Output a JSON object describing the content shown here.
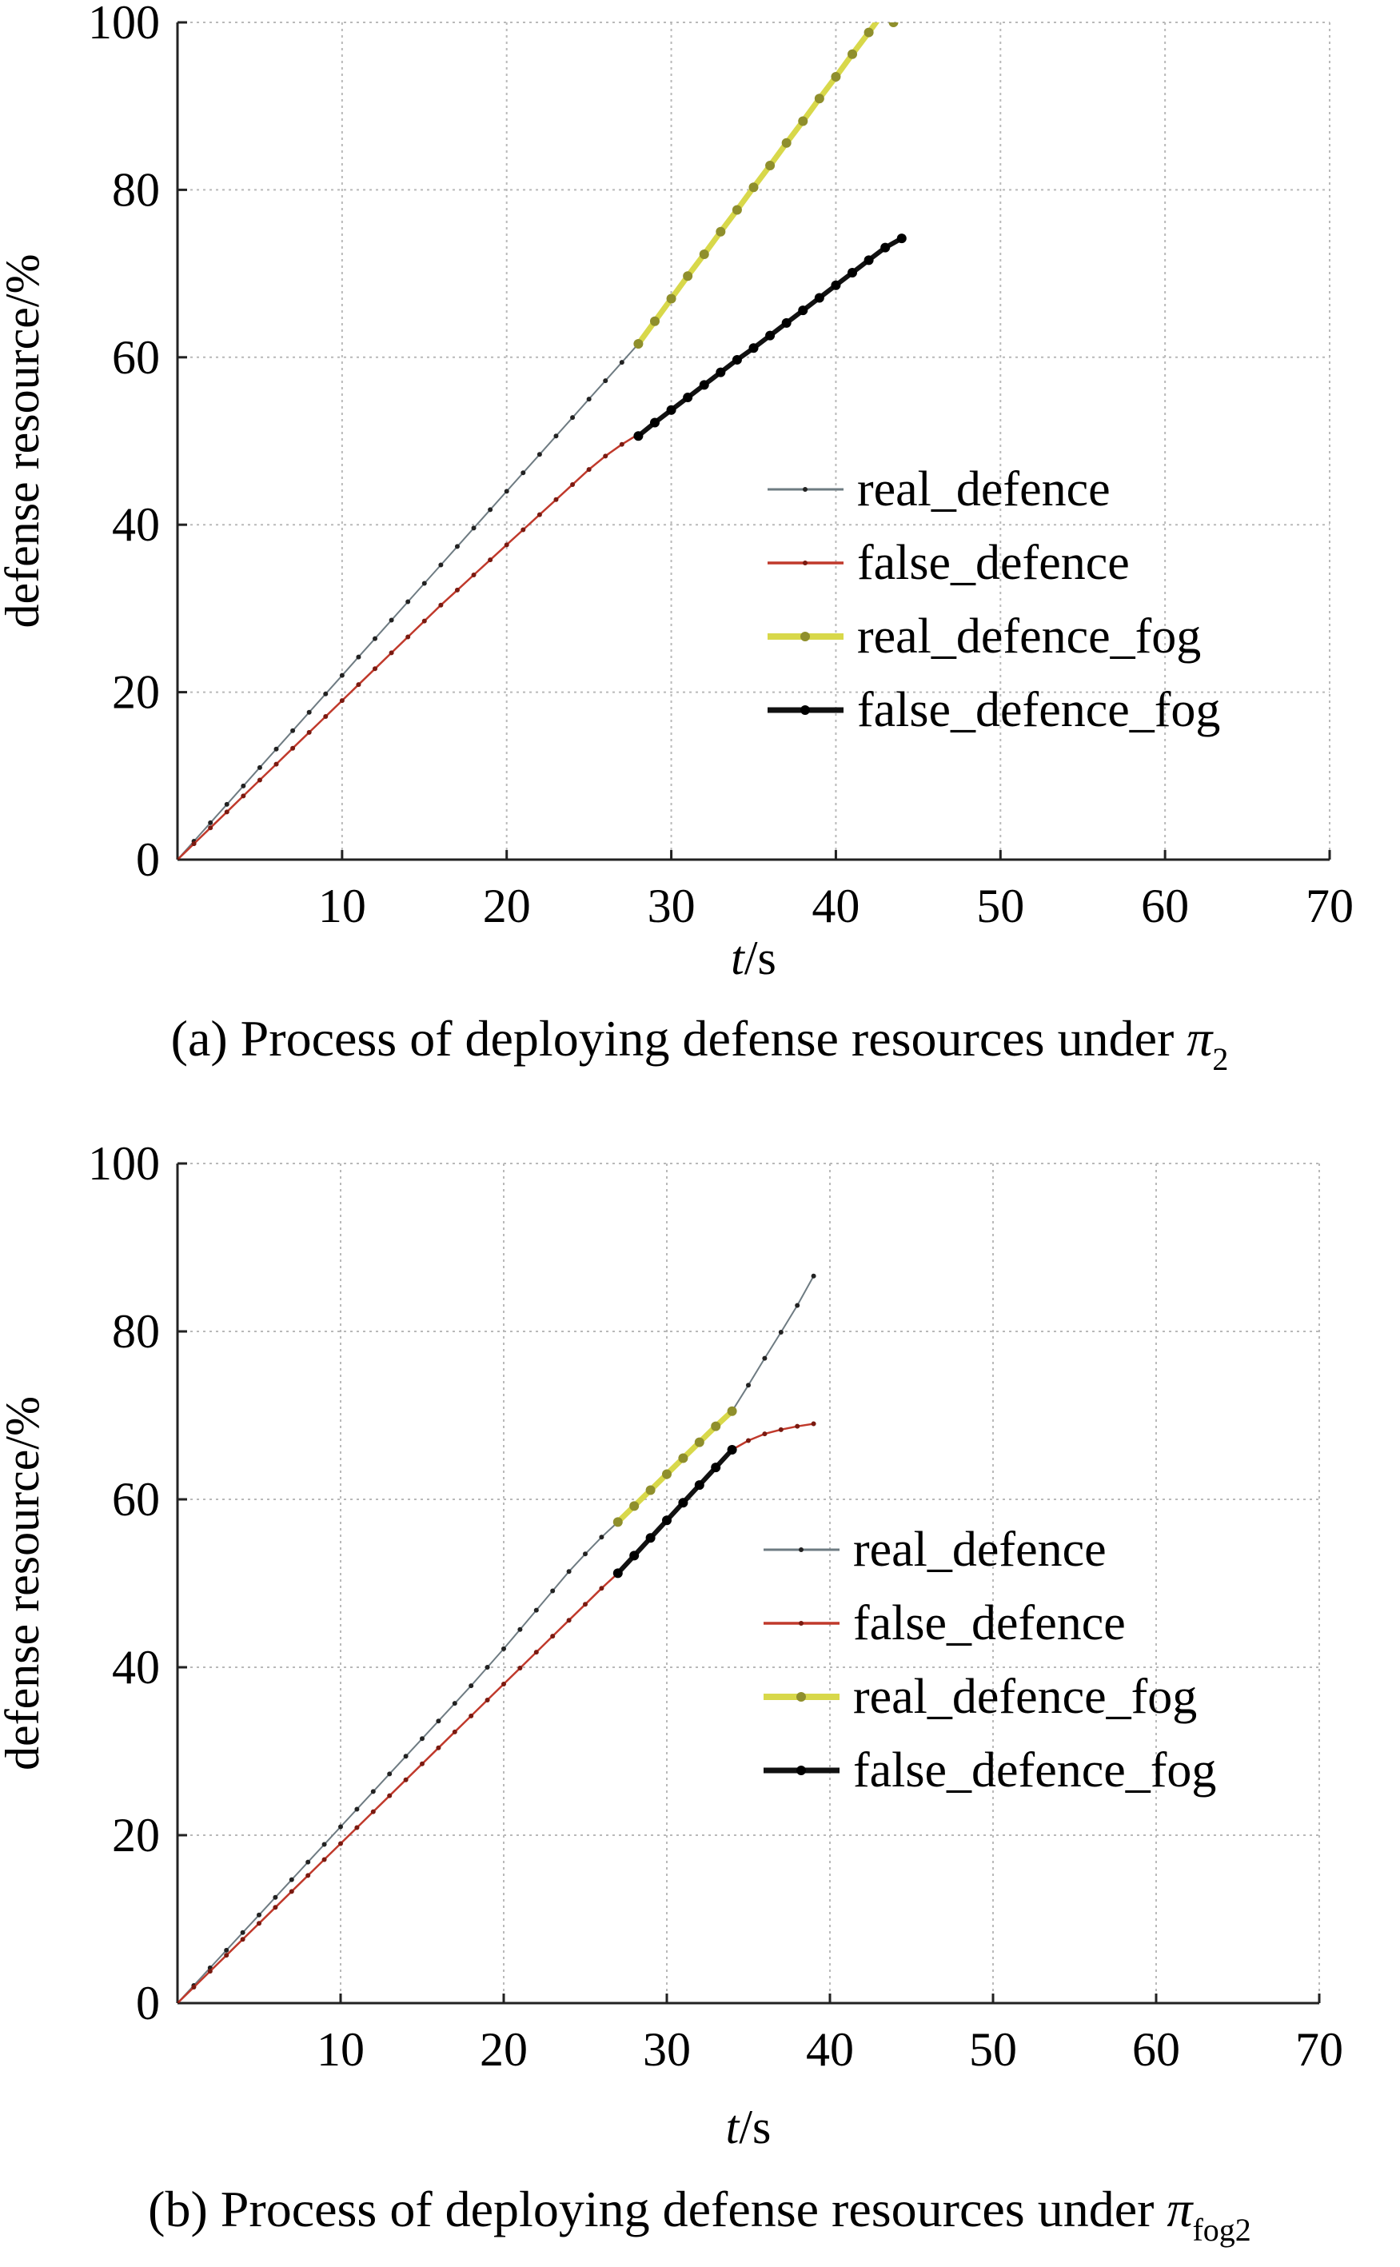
{
  "figures": [
    {
      "caption": {
        "prefix": "(a) Process of deploying defense resources under ",
        "symbol": "π",
        "sub": "2"
      },
      "xlabel": {
        "italic": "t",
        "rest": "/s"
      },
      "ylabel": "defense resource/%"
    },
    {
      "caption": {
        "prefix": "(b) Process of deploying defense resources under ",
        "symbol": "π",
        "sub": "fog2"
      },
      "xlabel": {
        "italic": "t",
        "rest": "/s"
      },
      "ylabel": "defense resource/%"
    }
  ],
  "colors": {
    "real_defence": "#6e7b82",
    "false_defence": "#c0392b",
    "real_defence_fog": "#d8d84a",
    "false_defence_fog": "#111111",
    "grid": "#b9b9b9"
  },
  "chart_data": [
    {
      "type": "line",
      "xlim": [
        0,
        70
      ],
      "ylim": [
        0,
        100
      ],
      "xticks": [
        10,
        20,
        30,
        40,
        50,
        60,
        70
      ],
      "yticks": [
        0,
        20,
        40,
        60,
        80,
        100
      ],
      "grid": true,
      "legend": "center-right",
      "series": [
        {
          "name": "real_defence",
          "color": "#6e7b82",
          "x": [
            0,
            1,
            2,
            3,
            4,
            5,
            6,
            7,
            8,
            9,
            10,
            11,
            12,
            13,
            14,
            15,
            16,
            17,
            18,
            19,
            20,
            21,
            22,
            23,
            24,
            25,
            26,
            27,
            28
          ],
          "y": [
            0,
            2.2,
            4.4,
            6.6,
            8.8,
            11,
            13.2,
            15.4,
            17.6,
            19.8,
            22,
            24.2,
            26.4,
            28.6,
            30.8,
            33,
            35.2,
            37.4,
            39.6,
            41.8,
            44,
            46.2,
            48.4,
            50.6,
            52.8,
            55,
            57.2,
            59.4,
            61.6
          ]
        },
        {
          "name": "false_defence",
          "color": "#c0392b",
          "x": [
            0,
            1,
            2,
            3,
            4,
            5,
            6,
            7,
            8,
            9,
            10,
            11,
            12,
            13,
            14,
            15,
            16,
            17,
            18,
            19,
            20,
            21,
            22,
            23,
            24,
            25,
            26,
            27,
            28
          ],
          "y": [
            0,
            1.9,
            3.8,
            5.7,
            7.6,
            9.5,
            11.4,
            13.3,
            15.2,
            17.1,
            19,
            20.9,
            22.8,
            24.7,
            26.6,
            28.5,
            30.4,
            32.2,
            34,
            35.8,
            37.6,
            39.4,
            41.2,
            43,
            44.8,
            46.6,
            48.2,
            49.6,
            50.8
          ]
        },
        {
          "name": "real_defence_fog",
          "color": "#d8d84a",
          "x": [
            28,
            29,
            30,
            31,
            32,
            33,
            34,
            35,
            36,
            37,
            38,
            39,
            40,
            41,
            42,
            43,
            43.5
          ],
          "y": [
            61.6,
            64.3,
            67,
            69.7,
            72.3,
            75,
            77.6,
            80.3,
            82.9,
            85.6,
            88.2,
            90.9,
            93.5,
            96.2,
            98.8,
            101.5,
            100
          ]
        },
        {
          "name": "false_defence_fog",
          "color": "#111111",
          "x": [
            28,
            29,
            30,
            31,
            32,
            33,
            34,
            35,
            36,
            37,
            38,
            39,
            40,
            41,
            42,
            43,
            44
          ],
          "y": [
            50.6,
            52.2,
            53.7,
            55.2,
            56.7,
            58.2,
            59.7,
            61.1,
            62.6,
            64.1,
            65.6,
            67.1,
            68.6,
            70.1,
            71.6,
            73.1,
            74.2
          ]
        }
      ]
    },
    {
      "type": "line",
      "xlim": [
        0,
        70
      ],
      "ylim": [
        0,
        100
      ],
      "xticks": [
        10,
        20,
        30,
        40,
        50,
        60,
        70
      ],
      "yticks": [
        0,
        20,
        40,
        60,
        80,
        100
      ],
      "grid": true,
      "legend": "center-right",
      "series": [
        {
          "name": "real_defence",
          "color": "#6e7b82",
          "x": [
            0,
            1,
            2,
            3,
            4,
            5,
            6,
            7,
            8,
            9,
            10,
            11,
            12,
            13,
            14,
            15,
            16,
            17,
            18,
            19,
            20,
            21,
            22,
            23,
            24,
            25,
            26,
            27,
            34,
            35,
            36,
            37,
            38,
            39
          ],
          "y": [
            0,
            2.1,
            4.2,
            6.3,
            8.4,
            10.5,
            12.6,
            14.7,
            16.8,
            18.9,
            21,
            23.1,
            25.2,
            27.3,
            29.4,
            31.5,
            33.6,
            35.7,
            37.8,
            40,
            42.2,
            44.5,
            46.8,
            49.1,
            51.4,
            53.5,
            55.5,
            57.3,
            70.5,
            73.6,
            76.8,
            79.9,
            83.1,
            86.6
          ]
        },
        {
          "name": "false_defence",
          "color": "#c0392b",
          "x": [
            0,
            1,
            2,
            3,
            4,
            5,
            6,
            7,
            8,
            9,
            10,
            11,
            12,
            13,
            14,
            15,
            16,
            17,
            18,
            19,
            20,
            21,
            22,
            23,
            24,
            25,
            26,
            27,
            34,
            35,
            36,
            37,
            38,
            39
          ],
          "y": [
            0,
            1.9,
            3.8,
            5.7,
            7.6,
            9.5,
            11.4,
            13.3,
            15.2,
            17.1,
            19,
            20.9,
            22.8,
            24.7,
            26.6,
            28.5,
            30.4,
            32.3,
            34.2,
            36.1,
            38,
            39.9,
            41.8,
            43.7,
            45.6,
            47.5,
            49.4,
            51.2,
            65.9,
            67,
            67.8,
            68.3,
            68.7,
            69
          ]
        },
        {
          "name": "real_defence_fog",
          "color": "#d8d84a",
          "x": [
            27,
            28,
            29,
            30,
            31,
            32,
            33,
            34
          ],
          "y": [
            57.3,
            59.2,
            61.1,
            63,
            64.9,
            66.8,
            68.7,
            70.5
          ]
        },
        {
          "name": "false_defence_fog",
          "color": "#111111",
          "x": [
            27,
            28,
            29,
            30,
            31,
            32,
            33,
            34
          ],
          "y": [
            51.2,
            53.3,
            55.4,
            57.5,
            59.6,
            61.7,
            63.8,
            65.9
          ]
        }
      ]
    }
  ]
}
